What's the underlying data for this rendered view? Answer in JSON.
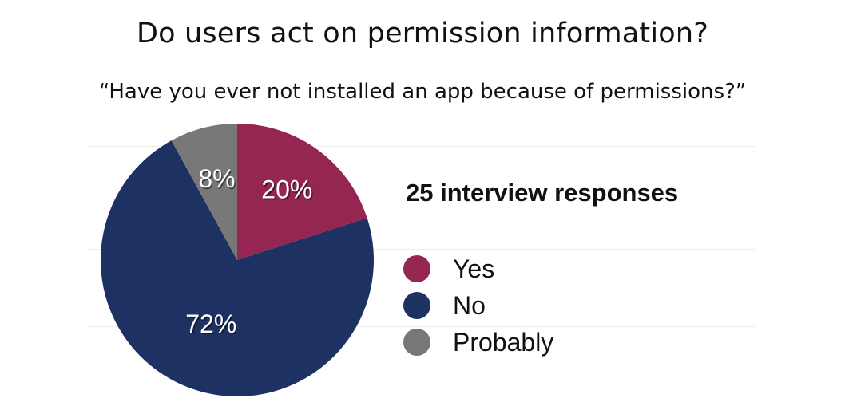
{
  "slide": {
    "title": "Do users act on permission information?",
    "subtitle": "“Have you ever not installed an app because of permissions?”"
  },
  "chart_data": {
    "type": "pie",
    "annotation": "25 interview responses",
    "slices": [
      {
        "name": "Yes",
        "value": 20,
        "label": "20%",
        "color": "#952652"
      },
      {
        "name": "No",
        "value": 72,
        "label": "72%",
        "color": "#1d3262"
      },
      {
        "name": "Probably",
        "value": 8,
        "label": "8%",
        "color": "#787878"
      }
    ],
    "legend_position": "right",
    "grid": true
  }
}
